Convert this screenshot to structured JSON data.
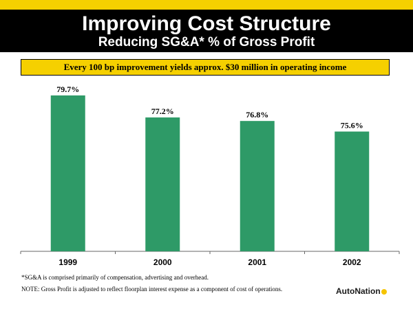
{
  "header": {
    "title": "Improving Cost Structure",
    "subtitle": "Reducing SG&A* % of Gross Profit"
  },
  "callout": "Every 100 bp improvement yields approx. $30 million in operating income",
  "chart_data": {
    "type": "bar",
    "categories": [
      "1999",
      "2000",
      "2001",
      "2002"
    ],
    "values": [
      79.7,
      77.2,
      76.8,
      75.6
    ],
    "data_labels": [
      "79.7%",
      "77.2%",
      "76.8%",
      "75.6%"
    ],
    "title": "",
    "xlabel": "",
    "ylabel": "",
    "ylim": [
      62,
      80.4
    ],
    "grid": false,
    "legend": "none",
    "bar_color": "#2e9a67"
  },
  "footnote": "*SG&A is comprised primarily of compensation, advertising and overhead.",
  "note": "NOTE: Gross Profit is adjusted to reflect floorplan interest expense as a component of cost of operations.",
  "logo": {
    "text": "AutoNation",
    "mark": "autonation-logo-mark"
  },
  "colors": {
    "accent": "#f5d000",
    "header_bg": "#000000",
    "bar": "#2e9a67"
  }
}
